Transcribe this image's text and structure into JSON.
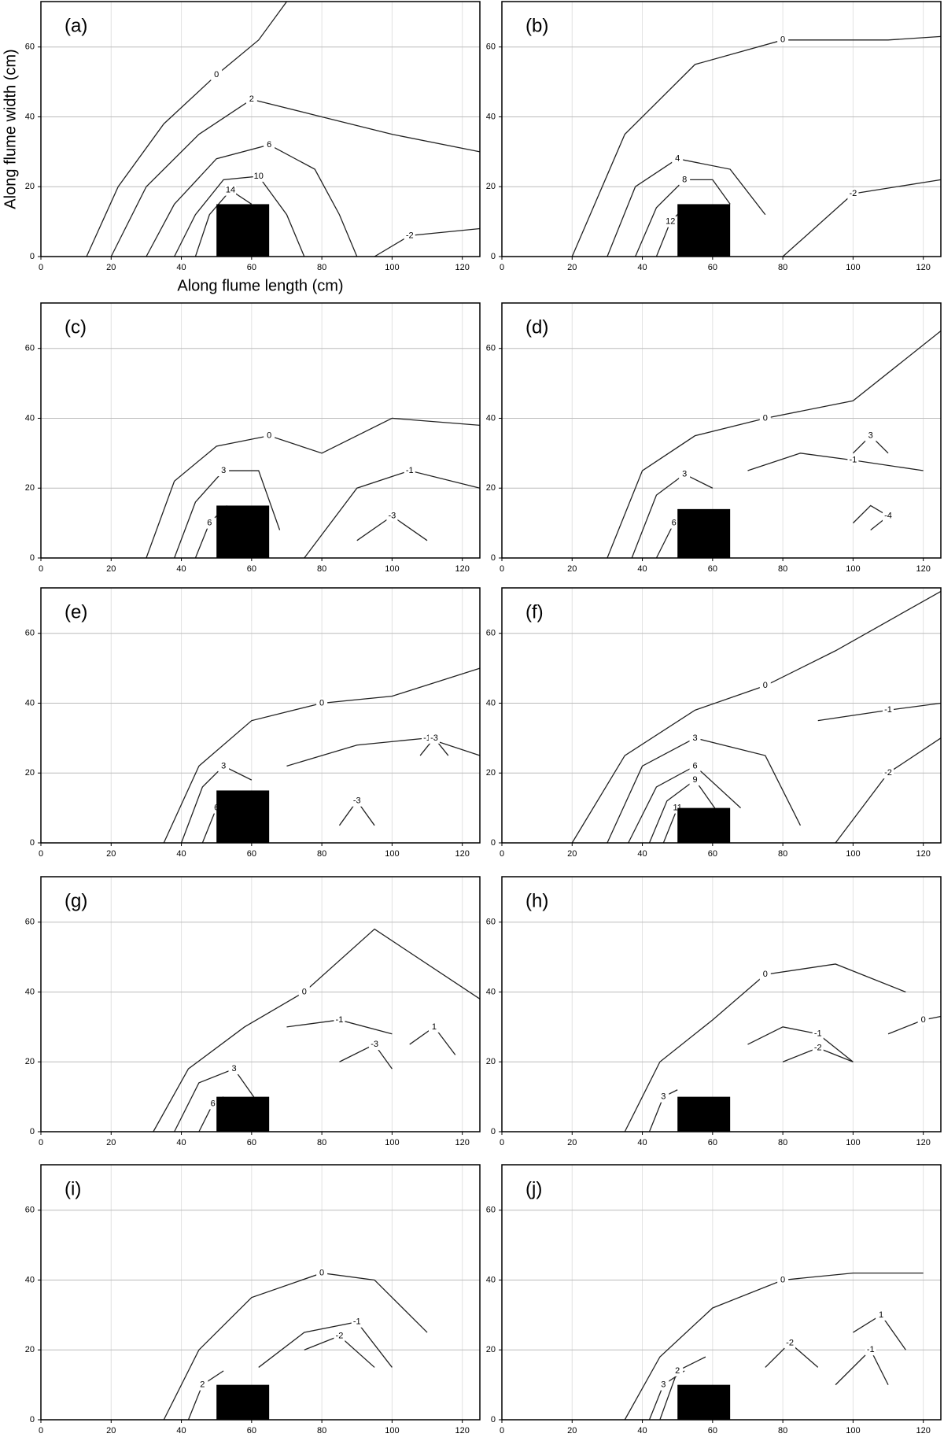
{
  "chart_data": [
    {
      "type": "contour",
      "title": "(a)",
      "xlabel": "Along flume length (cm)",
      "ylabel": "Along flume width (cm)",
      "xlim": [
        0,
        125
      ],
      "ylim": [
        0,
        73
      ],
      "xticks": [
        0,
        20,
        40,
        60,
        80,
        100,
        120
      ],
      "yticks": [
        0,
        20,
        40,
        60
      ],
      "grid": true,
      "obstacle": {
        "x": [
          50,
          65
        ],
        "y": [
          0,
          15
        ]
      },
      "contours": [
        {
          "level": 0,
          "x": [
            13,
            22,
            35,
            50,
            62,
            70
          ],
          "y": [
            0,
            20,
            38,
            52,
            62,
            73
          ]
        },
        {
          "level": 2,
          "x": [
            20,
            30,
            45,
            60,
            80,
            100,
            125
          ],
          "y": [
            0,
            20,
            35,
            45,
            40,
            35,
            30
          ]
        },
        {
          "level": 6,
          "x": [
            30,
            38,
            50,
            65,
            78,
            85,
            90
          ],
          "y": [
            0,
            15,
            28,
            32,
            25,
            12,
            0
          ]
        },
        {
          "level": 10,
          "x": [
            38,
            44,
            52,
            62,
            70,
            75
          ],
          "y": [
            0,
            12,
            22,
            23,
            12,
            0
          ]
        },
        {
          "level": 14,
          "x": [
            44,
            48,
            54,
            60
          ],
          "y": [
            0,
            12,
            19,
            15
          ]
        },
        {
          "level": -2,
          "x": [
            95,
            105,
            125
          ],
          "y": [
            0,
            6,
            8
          ]
        }
      ]
    },
    {
      "type": "contour",
      "title": "(b)",
      "xlim": [
        0,
        125
      ],
      "ylim": [
        0,
        73
      ],
      "xticks": [
        0,
        20,
        40,
        60,
        80,
        100,
        120
      ],
      "yticks": [
        0,
        20,
        40,
        60
      ],
      "grid": true,
      "obstacle": {
        "x": [
          50,
          65
        ],
        "y": [
          0,
          15
        ]
      },
      "contours": [
        {
          "level": 0,
          "x": [
            20,
            35,
            55,
            80,
            110,
            125
          ],
          "y": [
            0,
            35,
            55,
            62,
            62,
            63
          ]
        },
        {
          "level": 4,
          "x": [
            30,
            38,
            50,
            65,
            75
          ],
          "y": [
            0,
            20,
            28,
            25,
            12
          ]
        },
        {
          "level": 8,
          "x": [
            38,
            44,
            52,
            60,
            65
          ],
          "y": [
            0,
            14,
            22,
            22,
            15
          ]
        },
        {
          "level": 12,
          "x": [
            44,
            48,
            52
          ],
          "y": [
            0,
            10,
            14
          ]
        },
        {
          "level": -2,
          "x": [
            80,
            100,
            125
          ],
          "y": [
            0,
            18,
            22
          ]
        }
      ]
    },
    {
      "type": "contour",
      "title": "(c)",
      "xlim": [
        0,
        125
      ],
      "ylim": [
        0,
        73
      ],
      "xticks": [
        0,
        20,
        40,
        60,
        80,
        100,
        120
      ],
      "yticks": [
        0,
        20,
        40,
        60
      ],
      "grid": true,
      "obstacle": {
        "x": [
          50,
          65
        ],
        "y": [
          0,
          15
        ]
      },
      "contours": [
        {
          "level": 0,
          "x": [
            30,
            38,
            50,
            65,
            80,
            100,
            125
          ],
          "y": [
            0,
            22,
            32,
            35,
            30,
            40,
            38
          ]
        },
        {
          "level": 3,
          "x": [
            38,
            44,
            52,
            62,
            68
          ],
          "y": [
            0,
            16,
            25,
            25,
            8
          ]
        },
        {
          "level": 6,
          "x": [
            44,
            48,
            53
          ],
          "y": [
            0,
            10,
            15
          ]
        },
        {
          "level": -1,
          "x": [
            75,
            90,
            105,
            125
          ],
          "y": [
            0,
            20,
            25,
            20
          ]
        },
        {
          "level": -3,
          "x": [
            90,
            100,
            110
          ],
          "y": [
            5,
            12,
            5
          ]
        }
      ]
    },
    {
      "type": "contour",
      "title": "(d)",
      "xlim": [
        0,
        125
      ],
      "ylim": [
        0,
        73
      ],
      "xticks": [
        0,
        20,
        40,
        60,
        80,
        100,
        120
      ],
      "yticks": [
        0,
        20,
        40,
        60
      ],
      "grid": true,
      "obstacle": {
        "x": [
          50,
          65
        ],
        "y": [
          0,
          14
        ]
      },
      "contours": [
        {
          "level": 0,
          "x": [
            30,
            40,
            55,
            75,
            100,
            125
          ],
          "y": [
            0,
            25,
            35,
            40,
            45,
            65
          ]
        },
        {
          "level": 3,
          "x": [
            37,
            44,
            52,
            60
          ],
          "y": [
            0,
            18,
            24,
            20
          ]
        },
        {
          "level": 6,
          "x": [
            44,
            49,
            52
          ],
          "y": [
            0,
            10,
            13
          ]
        },
        {
          "level": -1,
          "x": [
            70,
            85,
            100,
            120
          ],
          "y": [
            25,
            30,
            28,
            25
          ]
        },
        {
          "level": -4,
          "x": [
            100,
            105,
            110,
            105
          ],
          "y": [
            10,
            15,
            12,
            8
          ]
        },
        {
          "level": 3,
          "x": [
            100,
            105,
            110
          ],
          "y": [
            30,
            35,
            30
          ]
        }
      ]
    },
    {
      "type": "contour",
      "title": "(e)",
      "xlim": [
        0,
        125
      ],
      "ylim": [
        0,
        73
      ],
      "xticks": [
        0,
        20,
        40,
        60,
        80,
        100,
        120
      ],
      "yticks": [
        0,
        20,
        40,
        60
      ],
      "grid": true,
      "obstacle": {
        "x": [
          50,
          65
        ],
        "y": [
          0,
          15
        ]
      },
      "contours": [
        {
          "level": 0,
          "x": [
            35,
            45,
            60,
            80,
            100,
            125
          ],
          "y": [
            0,
            22,
            35,
            40,
            42,
            50
          ]
        },
        {
          "level": 3,
          "x": [
            40,
            46,
            52,
            60
          ],
          "y": [
            0,
            16,
            22,
            18
          ]
        },
        {
          "level": 6,
          "x": [
            46,
            50
          ],
          "y": [
            0,
            10
          ]
        },
        {
          "level": -1,
          "x": [
            70,
            90,
            110,
            125
          ],
          "y": [
            22,
            28,
            30,
            25
          ]
        },
        {
          "level": -3,
          "x": [
            85,
            90,
            95
          ],
          "y": [
            5,
            12,
            5
          ]
        },
        {
          "level": -3,
          "x": [
            108,
            112,
            116
          ],
          "y": [
            25,
            30,
            25
          ]
        }
      ]
    },
    {
      "type": "contour",
      "title": "(f)",
      "xlim": [
        0,
        125
      ],
      "ylim": [
        0,
        73
      ],
      "xticks": [
        0,
        20,
        40,
        60,
        80,
        100,
        120
      ],
      "yticks": [
        0,
        20,
        40,
        60
      ],
      "grid": true,
      "obstacle": {
        "x": [
          50,
          65
        ],
        "y": [
          0,
          10
        ]
      },
      "contours": [
        {
          "level": 0,
          "x": [
            20,
            35,
            55,
            75,
            95,
            125
          ],
          "y": [
            0,
            25,
            38,
            45,
            55,
            72
          ]
        },
        {
          "level": 3,
          "x": [
            30,
            40,
            55,
            75,
            85
          ],
          "y": [
            0,
            22,
            30,
            25,
            5
          ]
        },
        {
          "level": 6,
          "x": [
            36,
            44,
            55,
            68
          ],
          "y": [
            0,
            16,
            22,
            10
          ]
        },
        {
          "level": 9,
          "x": [
            42,
            47,
            55,
            62
          ],
          "y": [
            0,
            12,
            18,
            8
          ]
        },
        {
          "level": 11,
          "x": [
            46,
            50
          ],
          "y": [
            0,
            10
          ]
        },
        {
          "level": -2,
          "x": [
            95,
            110,
            125
          ],
          "y": [
            0,
            20,
            30
          ]
        },
        {
          "level": -1,
          "x": [
            90,
            110,
            125
          ],
          "y": [
            35,
            38,
            40
          ]
        }
      ]
    },
    {
      "type": "contour",
      "title": "(g)",
      "xlim": [
        0,
        125
      ],
      "ylim": [
        0,
        73
      ],
      "xticks": [
        0,
        20,
        40,
        60,
        80,
        100,
        120
      ],
      "yticks": [
        0,
        20,
        40,
        60
      ],
      "grid": true,
      "obstacle": {
        "x": [
          50,
          65
        ],
        "y": [
          0,
          10
        ]
      },
      "contours": [
        {
          "level": 0,
          "x": [
            32,
            42,
            58,
            75,
            95,
            125
          ],
          "y": [
            0,
            18,
            30,
            40,
            58,
            38
          ]
        },
        {
          "level": 3,
          "x": [
            38,
            45,
            55,
            62
          ],
          "y": [
            0,
            14,
            18,
            8
          ]
        },
        {
          "level": 6,
          "x": [
            45,
            49,
            52
          ],
          "y": [
            0,
            8,
            10
          ]
        },
        {
          "level": -1,
          "x": [
            70,
            85,
            100
          ],
          "y": [
            30,
            32,
            28
          ]
        },
        {
          "level": -3,
          "x": [
            85,
            95,
            100
          ],
          "y": [
            20,
            25,
            18
          ]
        },
        {
          "level": 1,
          "x": [
            105,
            112,
            118
          ],
          "y": [
            25,
            30,
            22
          ]
        }
      ]
    },
    {
      "type": "contour",
      "title": "(h)",
      "xlim": [
        0,
        125
      ],
      "ylim": [
        0,
        73
      ],
      "xticks": [
        0,
        20,
        40,
        60,
        80,
        100,
        120
      ],
      "yticks": [
        0,
        20,
        40,
        60
      ],
      "grid": true,
      "obstacle": {
        "x": [
          50,
          65
        ],
        "y": [
          0,
          10
        ]
      },
      "contours": [
        {
          "level": 0,
          "x": [
            35,
            45,
            60,
            75,
            95,
            115
          ],
          "y": [
            0,
            20,
            32,
            45,
            48,
            40
          ]
        },
        {
          "level": 3,
          "x": [
            42,
            46,
            50
          ],
          "y": [
            0,
            10,
            12
          ]
        },
        {
          "level": -1,
          "x": [
            70,
            80,
            90,
            100
          ],
          "y": [
            25,
            30,
            28,
            20
          ]
        },
        {
          "level": -2,
          "x": [
            80,
            90,
            100
          ],
          "y": [
            20,
            24,
            20
          ]
        },
        {
          "level": 0,
          "x": [
            110,
            120,
            125
          ],
          "y": [
            28,
            32,
            33
          ]
        }
      ]
    },
    {
      "type": "contour",
      "title": "(i)",
      "xlim": [
        0,
        125
      ],
      "ylim": [
        0,
        73
      ],
      "xticks": [
        0,
        20,
        40,
        60,
        80,
        100,
        120
      ],
      "yticks": [
        0,
        20,
        40,
        60
      ],
      "grid": true,
      "obstacle": {
        "x": [
          50,
          65
        ],
        "y": [
          0,
          10
        ]
      },
      "contours": [
        {
          "level": 0,
          "x": [
            35,
            45,
            60,
            80,
            95,
            110
          ],
          "y": [
            0,
            20,
            35,
            42,
            40,
            25
          ]
        },
        {
          "level": 2,
          "x": [
            42,
            46,
            52
          ],
          "y": [
            0,
            10,
            14
          ]
        },
        {
          "level": -1,
          "x": [
            62,
            75,
            90,
            100
          ],
          "y": [
            15,
            25,
            28,
            15
          ]
        },
        {
          "level": -2,
          "x": [
            75,
            85,
            95
          ],
          "y": [
            20,
            24,
            15
          ]
        }
      ]
    },
    {
      "type": "contour",
      "title": "(j)",
      "xlim": [
        0,
        125
      ],
      "ylim": [
        0,
        73
      ],
      "xticks": [
        0,
        20,
        40,
        60,
        80,
        100,
        120
      ],
      "yticks": [
        0,
        20,
        40,
        60
      ],
      "grid": true,
      "obstacle": {
        "x": [
          50,
          65
        ],
        "y": [
          0,
          10
        ]
      },
      "contours": [
        {
          "level": 0,
          "x": [
            35,
            45,
            60,
            80,
            100,
            120
          ],
          "y": [
            0,
            18,
            32,
            40,
            42,
            42
          ]
        },
        {
          "level": 3,
          "x": [
            42,
            46,
            52
          ],
          "y": [
            0,
            10,
            14
          ]
        },
        {
          "level": 2,
          "x": [
            45,
            50,
            58
          ],
          "y": [
            0,
            14,
            18
          ]
        },
        {
          "level": -2,
          "x": [
            75,
            82,
            90
          ],
          "y": [
            15,
            22,
            15
          ]
        },
        {
          "level": -1,
          "x": [
            95,
            105,
            110
          ],
          "y": [
            10,
            20,
            10
          ]
        },
        {
          "level": 1,
          "x": [
            100,
            108,
            115
          ],
          "y": [
            25,
            30,
            20
          ]
        }
      ]
    }
  ]
}
